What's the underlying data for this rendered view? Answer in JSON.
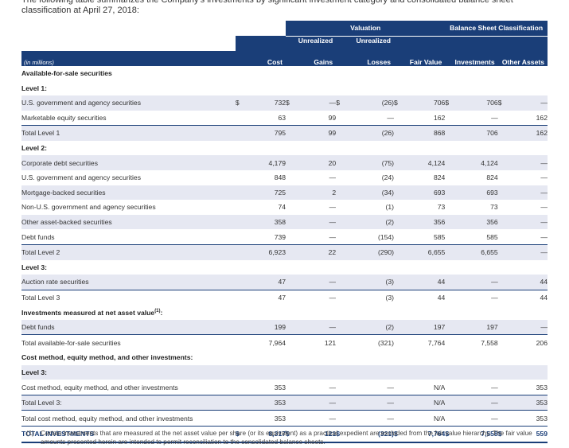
{
  "intro_text": "The following table summarizes the Company's investments by significant investment category and consolidated balance sheet classification at April 27, 2018:",
  "header": {
    "valuation": "Valuation",
    "balance_sheet": "Balance Sheet Classification",
    "unrealized": "Unrealized",
    "gains": "Gains",
    "losses": "Losses",
    "units": "(in millions)",
    "cost": "Cost",
    "fair_value": "Fair Value",
    "investments": "Investments",
    "other_assets": "Other Assets",
    "footnote_ref": "(1)"
  },
  "rows": [
    {
      "type": "section",
      "indent": 1,
      "label": "Available-for-sale securities"
    },
    {
      "type": "section",
      "indent": 2,
      "label": "Level 1:"
    },
    {
      "type": "row",
      "indent": 3,
      "shade": true,
      "dollar": true,
      "label": "U.S. government and agency securities",
      "cost": "732",
      "gains": "—",
      "losses": "(26)",
      "fv": "706",
      "inv": "706",
      "oa": "—"
    },
    {
      "type": "row",
      "indent": 3,
      "label": "Marketable equity securities",
      "cost": "63",
      "gains": "99",
      "losses": "—",
      "fv": "162",
      "inv": "—",
      "oa": "162"
    },
    {
      "type": "total",
      "indent": 4,
      "shade": true,
      "label": "Total Level 1",
      "cost": "795",
      "gains": "99",
      "losses": "(26)",
      "fv": "868",
      "inv": "706",
      "oa": "162"
    },
    {
      "type": "section",
      "indent": 2,
      "label": "Level 2:"
    },
    {
      "type": "row",
      "indent": 3,
      "shade": true,
      "label": "Corporate debt securities",
      "cost": "4,179",
      "gains": "20",
      "losses": "(75)",
      "fv": "4,124",
      "inv": "4,124",
      "oa": "—"
    },
    {
      "type": "row",
      "indent": 3,
      "label": "U.S. government and agency securities",
      "cost": "848",
      "gains": "—",
      "losses": "(24)",
      "fv": "824",
      "inv": "824",
      "oa": "—"
    },
    {
      "type": "row",
      "indent": 3,
      "shade": true,
      "label": "Mortgage-backed securities",
      "cost": "725",
      "gains": "2",
      "losses": "(34)",
      "fv": "693",
      "inv": "693",
      "oa": "—"
    },
    {
      "type": "row",
      "indent": 3,
      "label": "Non-U.S. government and agency securities",
      "cost": "74",
      "gains": "—",
      "losses": "(1)",
      "fv": "73",
      "inv": "73",
      "oa": "—"
    },
    {
      "type": "row",
      "indent": 3,
      "shade": true,
      "label": "Other asset-backed securities",
      "cost": "358",
      "gains": "—",
      "losses": "(2)",
      "fv": "356",
      "inv": "356",
      "oa": "—"
    },
    {
      "type": "row",
      "indent": 3,
      "label": "Debt funds",
      "cost": "739",
      "gains": "—",
      "losses": "(154)",
      "fv": "585",
      "inv": "585",
      "oa": "—"
    },
    {
      "type": "total",
      "indent": 4,
      "shade": true,
      "label": "Total Level 2",
      "cost": "6,923",
      "gains": "22",
      "losses": "(290)",
      "fv": "6,655",
      "inv": "6,655",
      "oa": "—"
    },
    {
      "type": "section",
      "indent": 2,
      "label": "Level 3:"
    },
    {
      "type": "row",
      "indent": 3,
      "shade": true,
      "label": "Auction rate securities",
      "cost": "47",
      "gains": "—",
      "losses": "(3)",
      "fv": "44",
      "inv": "—",
      "oa": "44"
    },
    {
      "type": "total",
      "indent": 4,
      "label": "Total Level 3",
      "cost": "47",
      "gains": "—",
      "losses": "(3)",
      "fv": "44",
      "inv": "—",
      "oa": "44"
    },
    {
      "type": "section",
      "indent": 2,
      "label": "Investments measured at net asset value",
      "sup": "(1)",
      "suffix": ":"
    },
    {
      "type": "row",
      "indent": 3,
      "shade": true,
      "label": "Debt funds",
      "cost": "199",
      "gains": "—",
      "losses": "(2)",
      "fv": "197",
      "inv": "197",
      "oa": "—"
    },
    {
      "type": "total",
      "indent": 1,
      "label": "Total available-for-sale securities",
      "cost": "7,964",
      "gains": "121",
      "losses": "(321)",
      "fv": "7,764",
      "inv": "7,558",
      "oa": "206"
    },
    {
      "type": "section",
      "indent": 1,
      "label": "Cost method, equity method, and other investments:"
    },
    {
      "type": "section",
      "indent": 2,
      "shade": true,
      "label": "Level 3:"
    },
    {
      "type": "row",
      "indent": 3,
      "label": "Cost method, equity method, and other investments",
      "cost": "353",
      "gains": "—",
      "losses": "—",
      "fv": "N/A",
      "inv": "—",
      "oa": "353"
    },
    {
      "type": "total",
      "indent": 4,
      "shade": true,
      "label": "Total Level 3:",
      "cost": "353",
      "gains": "—",
      "losses": "—",
      "fv": "N/A",
      "inv": "—",
      "oa": "353"
    },
    {
      "type": "total",
      "indent": 1,
      "label": "Total cost method, equity method, and other investments",
      "cost": "353",
      "gains": "—",
      "losses": "—",
      "fv": "N/A",
      "inv": "—",
      "oa": "353"
    },
    {
      "type": "grand",
      "indent": 1,
      "dollar": true,
      "label": "TOTAL INVESTMENTS",
      "cost": "8,317",
      "gains": "121",
      "losses": "(321)",
      "fv": "7,764",
      "inv": "7,558",
      "oa": "559"
    }
  ],
  "currency_symbol": "$",
  "footnote": {
    "marker": "(1)",
    "text": "Certain investments that are measured at the net asset value per share (or its equivalent) as a practical expedient are excluded from the fair value hierarchy. The fair value amounts presented herein are intended to permit reconciliation to the consolidated balance sheets."
  },
  "colors": {
    "header_bg": "#1a3e78",
    "row_shade": "#e6e8f2",
    "grand_text": "#1a3e78"
  }
}
